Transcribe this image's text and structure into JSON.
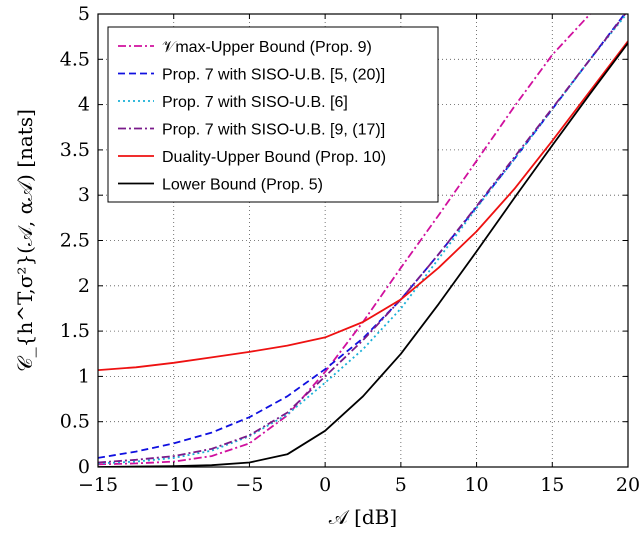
{
  "chart_data": {
    "type": "line",
    "xlabel": "𝒜 [dB]",
    "ylabel": "𝒞_{h^T,σ²}(𝒜, α𝒜) [nats]",
    "xlim": [
      -15,
      20
    ],
    "ylim": [
      0,
      5
    ],
    "grid": true,
    "legend_position": "top-left",
    "x_ticks": [
      "−15",
      "−10",
      "−5",
      "0",
      "5",
      "10",
      "15",
      "20"
    ],
    "y_ticks": [
      "0",
      "0.5",
      "1",
      "1.5",
      "2",
      "2.5",
      "3",
      "3.5",
      "4",
      "4.5",
      "5"
    ],
    "series": [
      {
        "name": "𝒱max-Upper Bound (Prop. 9)",
        "color": "#d0109e",
        "dash": "dashdot",
        "x": [
          -15,
          -12.5,
          -10,
          -7.5,
          -5,
          -2.5,
          0,
          2.5,
          5,
          7.5,
          10,
          12.5,
          15,
          17.5
        ],
        "y": [
          0.03,
          0.04,
          0.06,
          0.12,
          0.26,
          0.57,
          1.05,
          1.6,
          2.2,
          2.78,
          3.38,
          3.98,
          4.55,
          5.0
        ]
      },
      {
        "name": "Prop. 7 with SISO-U.B. [5, (20)]",
        "color": "#1010e0",
        "dash": "dashed",
        "x": [
          -15,
          -12.5,
          -10,
          -7.5,
          -5,
          -2.5,
          0,
          2.5,
          5,
          7.5,
          10,
          12.5,
          15,
          17.5,
          20
        ],
        "y": [
          0.1,
          0.17,
          0.26,
          0.38,
          0.55,
          0.78,
          1.08,
          1.42,
          1.85,
          2.35,
          2.87,
          3.4,
          3.95,
          4.5,
          5.05
        ]
      },
      {
        "name": "Prop. 7 with SISO-U.B. [6]",
        "color": "#1ab0d8",
        "dash": "dotted",
        "x": [
          -15,
          -12.5,
          -10,
          -7.5,
          -5,
          -2.5,
          0,
          2.5,
          5,
          7.5,
          10,
          12.5,
          15,
          17.5,
          20
        ],
        "y": [
          0.04,
          0.06,
          0.1,
          0.18,
          0.34,
          0.58,
          0.93,
          1.3,
          1.75,
          2.3,
          2.86,
          3.4,
          3.95,
          4.5,
          5.02
        ]
      },
      {
        "name": "Prop. 7 with SISO-U.B. [9, (17)]",
        "color": "#7a1a8a",
        "dash": "dashdot",
        "x": [
          -15,
          -12.5,
          -10,
          -7.5,
          -5,
          -2.5,
          0,
          2.5,
          5,
          7.5,
          10,
          12.5,
          15,
          17.5,
          20
        ],
        "y": [
          0.05,
          0.08,
          0.12,
          0.2,
          0.35,
          0.6,
          1.0,
          1.4,
          1.85,
          2.35,
          2.88,
          3.42,
          3.96,
          4.5,
          5.04
        ]
      },
      {
        "name": "Duality-Upper Bound (Prop. 10)",
        "color": "#ee1111",
        "dash": "solid",
        "x": [
          -15,
          -12.5,
          -10,
          -7.5,
          -5,
          -2.5,
          0,
          2.5,
          5,
          7.5,
          10,
          12.5,
          15,
          17.5,
          20
        ],
        "y": [
          1.07,
          1.1,
          1.15,
          1.21,
          1.27,
          1.34,
          1.43,
          1.6,
          1.85,
          2.2,
          2.6,
          3.07,
          3.6,
          4.15,
          4.7
        ]
      },
      {
        "name": "Lower Bound (Prop. 5)",
        "color": "#000000",
        "dash": "solid",
        "x": [
          -15,
          -12.5,
          -10,
          -7.5,
          -5,
          -2.5,
          0,
          2.5,
          5,
          7.5,
          10,
          12.5,
          15,
          17.5,
          20
        ],
        "y": [
          0.0,
          0.005,
          0.01,
          0.02,
          0.05,
          0.14,
          0.4,
          0.78,
          1.25,
          1.8,
          2.38,
          2.97,
          3.55,
          4.12,
          4.68
        ]
      }
    ]
  }
}
